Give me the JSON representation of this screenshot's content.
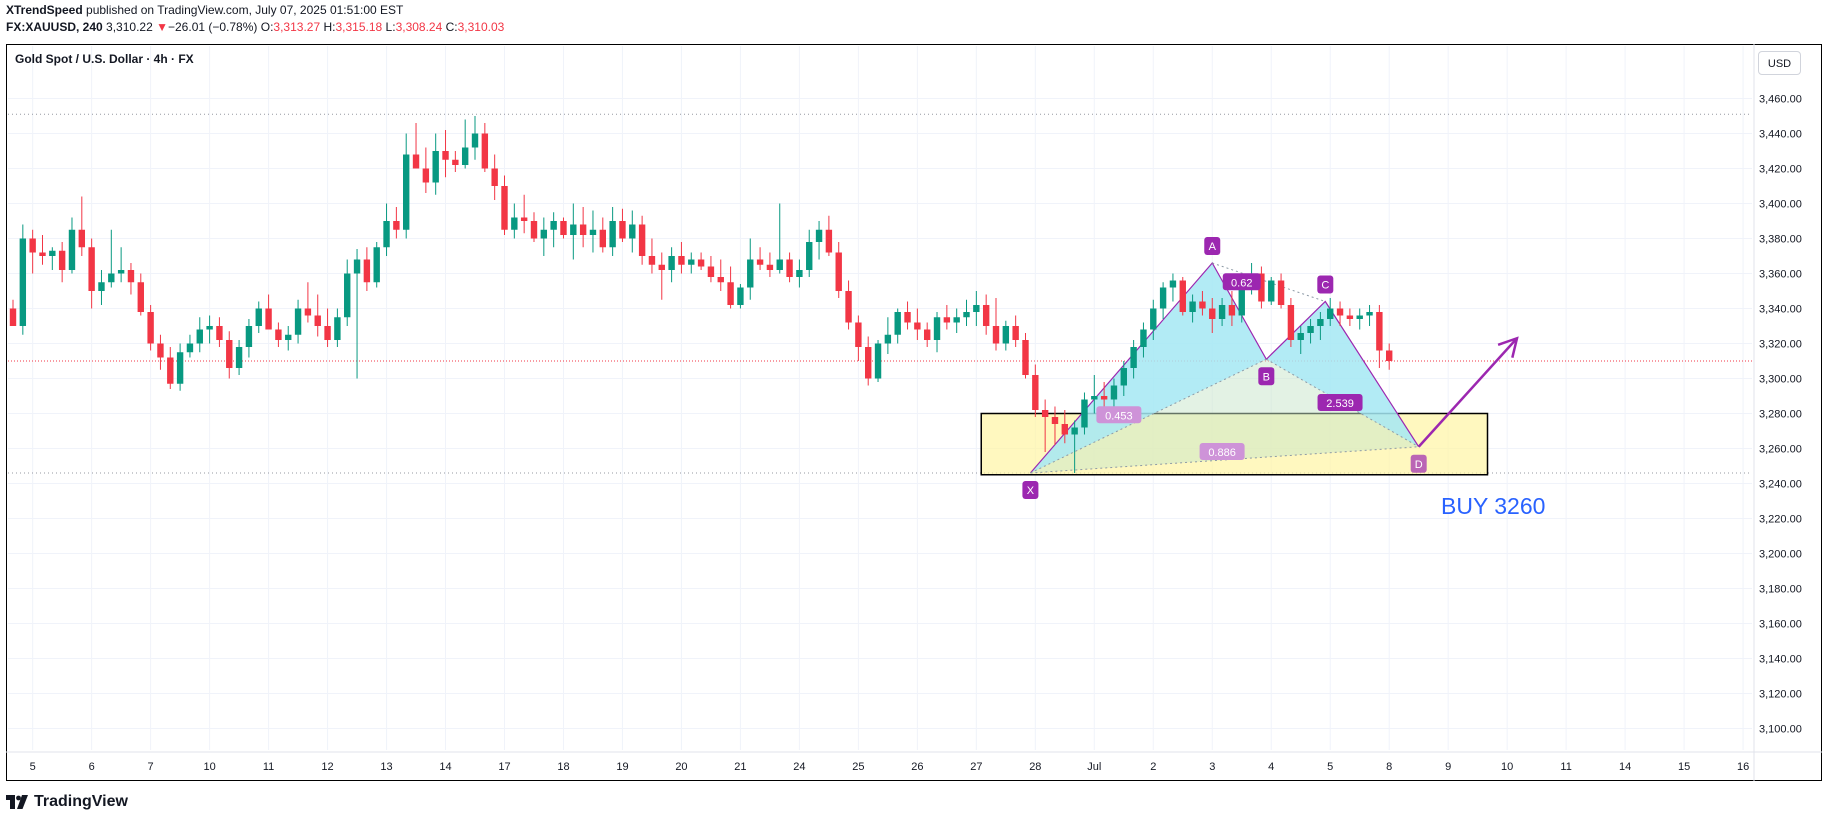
{
  "header": {
    "publisher": "XTrendSpeed",
    "published_text": " published on TradingView.com, July 07, 2025 01:51:00 EST",
    "symbol": "FX:XAUUSD, 240",
    "last": "3,310.22",
    "change_arrow": "▼",
    "change": "−26.01 (−0.78%)",
    "o_label": "O:",
    "o": "3,313.27",
    "h_label": "H:",
    "h": "3,315.18",
    "l_label": "L:",
    "l": "3,308.24",
    "c_label": "C:",
    "c": "3,310.03"
  },
  "chart_title": "Gold Spot / U.S. Dollar · 4h · FX",
  "currency_button": "USD",
  "footer_brand": "TradingView",
  "footer_logo_icon": "tradingview-logo-icon",
  "annotation_text": "BUY 3260",
  "colors": {
    "up": "#089981",
    "down": "#f23645",
    "pattern_purple": "#9c27b0",
    "pattern_fill_cyan": "#a5e8f3",
    "pattern_fill_green": "#c8e6c9",
    "zone_fill": "#fff59d",
    "buy_text": "#2962ff",
    "ratio_label": "#ce93d8"
  },
  "chart_data": {
    "type": "candlestick",
    "title": "Gold Spot / U.S. Dollar · 4h · FX",
    "ylim": [
      3090,
      3470
    ],
    "y_ticks": [
      3460,
      3440,
      3420,
      3400,
      3380,
      3360,
      3340,
      3320,
      3300,
      3280,
      3260,
      3240,
      3220,
      3200,
      3180,
      3160,
      3140,
      3120,
      3100
    ],
    "y_tick_labels": [
      "3,460.00",
      "3,440.00",
      "3,420.00",
      "3,400.00",
      "3,380.00",
      "3,360.00",
      "3,340.00",
      "3,320.00",
      "3,300.00",
      "3,280.00",
      "3,260.00",
      "3,240.00",
      "3,220.00",
      "3,200.00",
      "3,180.00",
      "3,160.00",
      "3,140.00",
      "3,120.00",
      "3,100.00"
    ],
    "x_ticks": [
      "5",
      "6",
      "7",
      "10",
      "11",
      "12",
      "13",
      "14",
      "17",
      "18",
      "19",
      "20",
      "21",
      "24",
      "25",
      "26",
      "27",
      "28",
      "Jul",
      "2",
      "3",
      "4",
      "5",
      "8",
      "9",
      "10",
      "11",
      "14",
      "15",
      "16"
    ],
    "x_tick_index": [
      2,
      8,
      14,
      20,
      26,
      32,
      38,
      44,
      50,
      56,
      62,
      68,
      74,
      80,
      86,
      92,
      98,
      104,
      110,
      116,
      122,
      128,
      134,
      140,
      146,
      152,
      158,
      164,
      170,
      176
    ],
    "ohlc": [
      [
        3340,
        3345,
        3330,
        3330
      ],
      [
        3330,
        3388,
        3325,
        3380
      ],
      [
        3380,
        3385,
        3360,
        3372
      ],
      [
        3372,
        3382,
        3365,
        3370
      ],
      [
        3370,
        3375,
        3362,
        3373
      ],
      [
        3373,
        3378,
        3355,
        3362
      ],
      [
        3362,
        3392,
        3360,
        3385
      ],
      [
        3385,
        3404,
        3370,
        3375
      ],
      [
        3375,
        3380,
        3340,
        3350
      ],
      [
        3350,
        3362,
        3342,
        3355
      ],
      [
        3355,
        3385,
        3352,
        3360
      ],
      [
        3360,
        3375,
        3355,
        3362
      ],
      [
        3362,
        3366,
        3348,
        3355
      ],
      [
        3355,
        3360,
        3336,
        3338
      ],
      [
        3338,
        3342,
        3316,
        3320
      ],
      [
        3320,
        3325,
        3305,
        3312
      ],
      [
        3312,
        3318,
        3294,
        3297
      ],
      [
        3297,
        3320,
        3293,
        3315
      ],
      [
        3315,
        3325,
        3312,
        3320
      ],
      [
        3320,
        3335,
        3315,
        3328
      ],
      [
        3328,
        3336,
        3320,
        3330
      ],
      [
        3330,
        3335,
        3318,
        3322
      ],
      [
        3322,
        3327,
        3300,
        3306
      ],
      [
        3306,
        3322,
        3302,
        3318
      ],
      [
        3318,
        3334,
        3312,
        3330
      ],
      [
        3330,
        3344,
        3326,
        3340
      ],
      [
        3340,
        3348,
        3330,
        3328
      ],
      [
        3328,
        3332,
        3318,
        3322
      ],
      [
        3322,
        3330,
        3316,
        3325
      ],
      [
        3325,
        3345,
        3320,
        3340
      ],
      [
        3340,
        3355,
        3332,
        3336
      ],
      [
        3336,
        3348,
        3324,
        3330
      ],
      [
        3330,
        3340,
        3318,
        3322
      ],
      [
        3322,
        3340,
        3318,
        3335
      ],
      [
        3335,
        3368,
        3330,
        3360
      ],
      [
        3360,
        3374,
        3300,
        3368
      ],
      [
        3368,
        3375,
        3350,
        3355
      ],
      [
        3355,
        3378,
        3352,
        3375
      ],
      [
        3375,
        3400,
        3370,
        3390
      ],
      [
        3390,
        3398,
        3380,
        3385
      ],
      [
        3385,
        3440,
        3380,
        3428
      ],
      [
        3428,
        3446,
        3420,
        3420
      ],
      [
        3420,
        3432,
        3406,
        3412
      ],
      [
        3412,
        3440,
        3405,
        3430
      ],
      [
        3430,
        3442,
        3415,
        3425
      ],
      [
        3425,
        3430,
        3418,
        3422
      ],
      [
        3422,
        3448,
        3420,
        3432
      ],
      [
        3432,
        3450,
        3425,
        3440
      ],
      [
        3440,
        3446,
        3418,
        3420
      ],
      [
        3420,
        3428,
        3402,
        3410
      ],
      [
        3410,
        3416,
        3382,
        3385
      ],
      [
        3385,
        3400,
        3380,
        3392
      ],
      [
        3392,
        3405,
        3383,
        3390
      ],
      [
        3390,
        3395,
        3378,
        3380
      ],
      [
        3380,
        3392,
        3370,
        3385
      ],
      [
        3385,
        3395,
        3375,
        3390
      ],
      [
        3390,
        3392,
        3380,
        3382
      ],
      [
        3382,
        3400,
        3368,
        3388
      ],
      [
        3388,
        3398,
        3375,
        3382
      ],
      [
        3382,
        3396,
        3372,
        3385
      ],
      [
        3385,
        3392,
        3372,
        3375
      ],
      [
        3375,
        3398,
        3370,
        3390
      ],
      [
        3390,
        3397,
        3378,
        3380
      ],
      [
        3380,
        3396,
        3372,
        3388
      ],
      [
        3388,
        3393,
        3365,
        3370
      ],
      [
        3370,
        3380,
        3360,
        3365
      ],
      [
        3365,
        3372,
        3345,
        3362
      ],
      [
        3362,
        3375,
        3355,
        3370
      ],
      [
        3370,
        3378,
        3360,
        3365
      ],
      [
        3365,
        3372,
        3360,
        3368
      ],
      [
        3368,
        3372,
        3362,
        3364
      ],
      [
        3364,
        3370,
        3355,
        3358
      ],
      [
        3358,
        3368,
        3350,
        3355
      ],
      [
        3355,
        3364,
        3340,
        3342
      ],
      [
        3342,
        3354,
        3340,
        3352
      ],
      [
        3352,
        3380,
        3345,
        3368
      ],
      [
        3368,
        3375,
        3362,
        3365
      ],
      [
        3365,
        3372,
        3358,
        3362
      ],
      [
        3362,
        3400,
        3360,
        3368
      ],
      [
        3368,
        3372,
        3355,
        3358
      ],
      [
        3358,
        3368,
        3352,
        3362
      ],
      [
        3362,
        3385,
        3358,
        3378
      ],
      [
        3378,
        3390,
        3368,
        3385
      ],
      [
        3385,
        3393,
        3370,
        3372
      ],
      [
        3372,
        3378,
        3346,
        3350
      ],
      [
        3350,
        3356,
        3328,
        3332
      ],
      [
        3332,
        3336,
        3310,
        3318
      ],
      [
        3318,
        3324,
        3296,
        3300
      ],
      [
        3300,
        3322,
        3298,
        3320
      ],
      [
        3320,
        3335,
        3314,
        3325
      ],
      [
        3325,
        3340,
        3320,
        3338
      ],
      [
        3338,
        3344,
        3328,
        3332
      ],
      [
        3332,
        3340,
        3322,
        3328
      ],
      [
        3328,
        3332,
        3318,
        3322
      ],
      [
        3322,
        3338,
        3315,
        3335
      ],
      [
        3335,
        3342,
        3328,
        3332
      ],
      [
        3332,
        3340,
        3326,
        3335
      ],
      [
        3335,
        3345,
        3330,
        3338
      ],
      [
        3338,
        3350,
        3330,
        3342
      ],
      [
        3342,
        3348,
        3325,
        3330
      ],
      [
        3330,
        3346,
        3316,
        3320
      ],
      [
        3320,
        3333,
        3316,
        3330
      ],
      [
        3330,
        3336,
        3318,
        3322
      ],
      [
        3322,
        3326,
        3300,
        3302
      ],
      [
        3302,
        3308,
        3278,
        3282
      ],
      [
        3282,
        3288,
        3258,
        3278
      ],
      [
        3278,
        3284,
        3262,
        3274
      ],
      [
        3274,
        3282,
        3263,
        3268
      ],
      [
        3268,
        3276,
        3246,
        3272
      ],
      [
        3272,
        3292,
        3268,
        3288
      ],
      [
        3288,
        3302,
        3280,
        3290
      ],
      [
        3290,
        3298,
        3282,
        3288
      ],
      [
        3288,
        3300,
        3276,
        3296
      ],
      [
        3296,
        3310,
        3290,
        3306
      ],
      [
        3306,
        3322,
        3300,
        3318
      ],
      [
        3318,
        3332,
        3312,
        3328
      ],
      [
        3328,
        3345,
        3322,
        3340
      ],
      [
        3340,
        3355,
        3334,
        3352
      ],
      [
        3352,
        3360,
        3344,
        3356
      ],
      [
        3356,
        3358,
        3336,
        3338
      ],
      [
        3338,
        3348,
        3332,
        3344
      ],
      [
        3344,
        3350,
        3336,
        3340
      ],
      [
        3340,
        3346,
        3326,
        3334
      ],
      [
        3334,
        3346,
        3330,
        3342
      ],
      [
        3342,
        3350,
        3330,
        3336
      ],
      [
        3336,
        3355,
        3332,
        3352
      ],
      [
        3352,
        3366,
        3348,
        3360
      ],
      [
        3360,
        3364,
        3340,
        3344
      ],
      [
        3344,
        3358,
        3342,
        3356
      ],
      [
        3356,
        3360,
        3340,
        3342
      ],
      [
        3342,
        3346,
        3318,
        3322
      ],
      [
        3322,
        3330,
        3314,
        3326
      ],
      [
        3326,
        3334,
        3320,
        3330
      ],
      [
        3330,
        3338,
        3322,
        3334
      ],
      [
        3334,
        3346,
        3330,
        3340
      ],
      [
        3340,
        3344,
        3330,
        3336
      ],
      [
        3336,
        3340,
        3330,
        3334
      ],
      [
        3334,
        3340,
        3328,
        3336
      ],
      [
        3336,
        3342,
        3330,
        3338
      ],
      [
        3338,
        3342,
        3306,
        3316
      ],
      [
        3316,
        3320,
        3305,
        3310
      ]
    ],
    "levels": {
      "dotted_high": 3451,
      "current_price": 3310.03,
      "dotted_low": 3246
    },
    "harmonic_pattern": {
      "points": [
        {
          "label": "X",
          "x_index": 103.5,
          "price": 3246
        },
        {
          "label": "A",
          "x_index": 122.0,
          "price": 3366
        },
        {
          "label": "B",
          "x_index": 127.5,
          "price": 3311
        },
        {
          "label": "C",
          "x_index": 133.5,
          "price": 3344
        },
        {
          "label": "D",
          "x_index": 143.0,
          "price": 3261
        }
      ],
      "ratios": [
        {
          "label": "0.62",
          "x_index": 125.0,
          "price": 3355
        },
        {
          "label": "2.539",
          "x_index": 135.0,
          "price": 3286
        },
        {
          "label": "0.453",
          "x_index": 112.5,
          "price": 3279
        },
        {
          "label": "0.886",
          "x_index": 123.0,
          "price": 3258
        }
      ]
    },
    "buy_zone": {
      "x_start_index": 98.5,
      "x_end_index": 150.0,
      "price_top": 3280,
      "price_bottom": 3245
    },
    "projection_arrow": {
      "from_index": 143.0,
      "from_price": 3261,
      "to_index": 153.0,
      "to_price": 3323
    },
    "annotation": "BUY 3260"
  }
}
